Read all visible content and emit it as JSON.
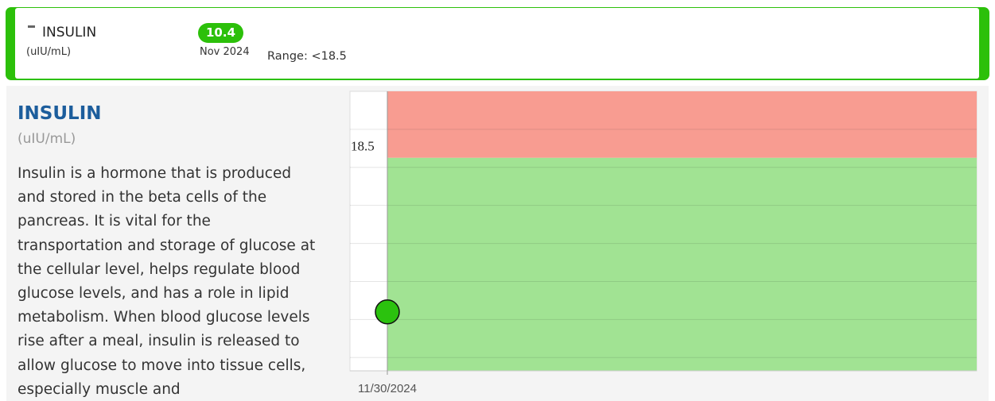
{
  "summary": {
    "name": "INSULIN",
    "unit": "(uIU/mL)",
    "value": "10.4",
    "date": "Nov 2024",
    "range": "Range: <18.5"
  },
  "detail": {
    "title": "INSULIN",
    "unit": "(uIU/mL)",
    "description": "Insulin is a hormone that is produced and stored in the beta cells of the pancreas. It is vital for the transportation and storage of glucose at the cellular level, helps regulate blood glucose levels, and has a role in lipid metabolism. When blood glucose levels rise after a meal, insulin is released to allow glucose to move into tissue cells, especially muscle and"
  },
  "chart_data": {
    "type": "scatter",
    "x": [
      "11/30/2024"
    ],
    "series": [
      {
        "color": "#2bc20e",
        "values": [
          10.4
        ]
      }
    ],
    "ylim": [
      7.3,
      22
    ],
    "yticks": [
      8,
      10,
      12,
      14,
      16,
      18,
      20
    ],
    "grid": true,
    "threshold": 18.5,
    "above_color": "#f89c91",
    "below_color": "#a1e393"
  }
}
